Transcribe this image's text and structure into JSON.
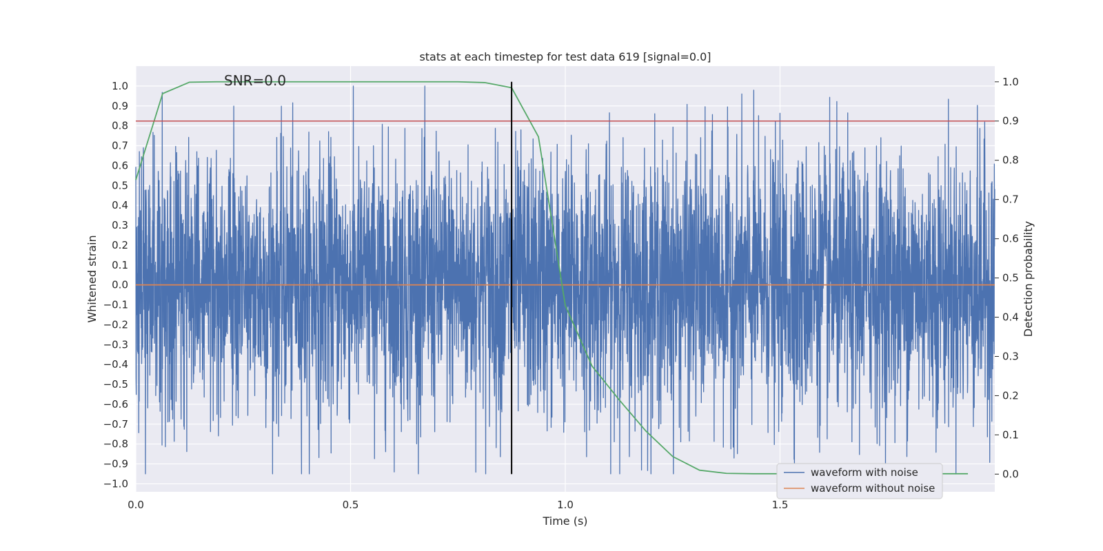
{
  "chart_data": {
    "type": "line",
    "title": "stats at each timestep for test data 619 [signal=0.0]",
    "xlabel": "Time (s)",
    "ylabel_left": "Whitened strain",
    "ylabel_right": "Detection probability",
    "annotation": "SNR=0.0",
    "xlim": [
      0.0,
      2.0
    ],
    "ylim_left": [
      -1.04,
      1.1
    ],
    "ylim_right": [
      -0.045,
      1.04
    ],
    "x_ticks": [
      0.0,
      0.5,
      1.0,
      1.5
    ],
    "x_tick_labels": [
      "0.0",
      "0.5",
      "1.0",
      "1.5"
    ],
    "y_ticks_left": [
      -1.0,
      -0.9,
      -0.8,
      -0.7,
      -0.6,
      -0.5,
      -0.4,
      -0.3,
      -0.2,
      -0.1,
      0.0,
      0.1,
      0.2,
      0.3,
      0.4,
      0.5,
      0.6,
      0.7,
      0.8,
      0.9,
      1.0
    ],
    "y_tick_labels_left": [
      "−1.0",
      "−0.9",
      "−0.8",
      "−0.7",
      "−0.6",
      "−0.5",
      "−0.4",
      "−0.3",
      "−0.2",
      "−0.1",
      "0.0",
      "0.1",
      "0.2",
      "0.3",
      "0.4",
      "0.5",
      "0.6",
      "0.7",
      "0.8",
      "0.9",
      "1.0"
    ],
    "y_ticks_right": [
      0.0,
      0.1,
      0.2,
      0.3,
      0.4,
      0.5,
      0.6,
      0.7,
      0.8,
      0.9,
      1.0
    ],
    "y_tick_labels_right": [
      "0.0",
      "0.1",
      "0.2",
      "0.3",
      "0.4",
      "0.5",
      "0.6",
      "0.7",
      "0.8",
      "0.9",
      "1.0"
    ],
    "grid": true,
    "legend": {
      "placement": "lower-right",
      "entries": [
        "waveform with noise",
        "waveform without noise"
      ]
    },
    "series": [
      {
        "name": "waveform with noise",
        "axis": "left",
        "color": "#4c72b0",
        "kind": "noise",
        "n_samples": 4096,
        "x_range": [
          0.0,
          2.0
        ],
        "value_range": [
          -0.95,
          1.0
        ],
        "std_estimate": 0.33
      },
      {
        "name": "waveform without noise",
        "axis": "left",
        "color": "#dd8452",
        "x": [
          0.0,
          2.0
        ],
        "y": [
          0.0,
          0.0
        ]
      },
      {
        "name": "Detection probability",
        "axis": "right",
        "color": "#55a868",
        "x": [
          0.0,
          0.0625,
          0.125,
          0.1875,
          0.25,
          0.3125,
          0.375,
          0.4375,
          0.5,
          0.5625,
          0.625,
          0.6875,
          0.75,
          0.8125,
          0.875,
          0.9375,
          1.0,
          1.0625,
          1.125,
          1.1875,
          1.25,
          1.3125,
          1.375,
          1.4375,
          1.5,
          1.5625,
          1.625,
          1.6875,
          1.75,
          1.8125,
          1.875,
          1.9375
        ],
        "y": [
          0.75,
          0.97,
          0.999,
          1.0,
          1.0,
          1.0,
          1.0,
          1.0,
          1.0,
          1.0,
          1.0,
          1.0,
          1.0,
          0.998,
          0.985,
          0.86,
          0.43,
          0.275,
          0.19,
          0.11,
          0.045,
          0.01,
          0.002,
          0.001,
          0.001,
          0.001,
          0.001,
          0.001,
          0.001,
          0.001,
          0.001,
          0.001
        ]
      }
    ],
    "hlines": [
      {
        "axis": "right",
        "y": 0.9,
        "color": "#c44e52"
      }
    ],
    "vlines": [
      {
        "x": 0.875,
        "color": "#000000",
        "y_from_right": 0.0,
        "y_to_right": 1.0
      }
    ],
    "colors": {
      "axes_bg": "#eaeaf2",
      "grid": "#ffffff",
      "legend_bg": "#eaeaf2",
      "legend_border": "#cccccc"
    }
  }
}
